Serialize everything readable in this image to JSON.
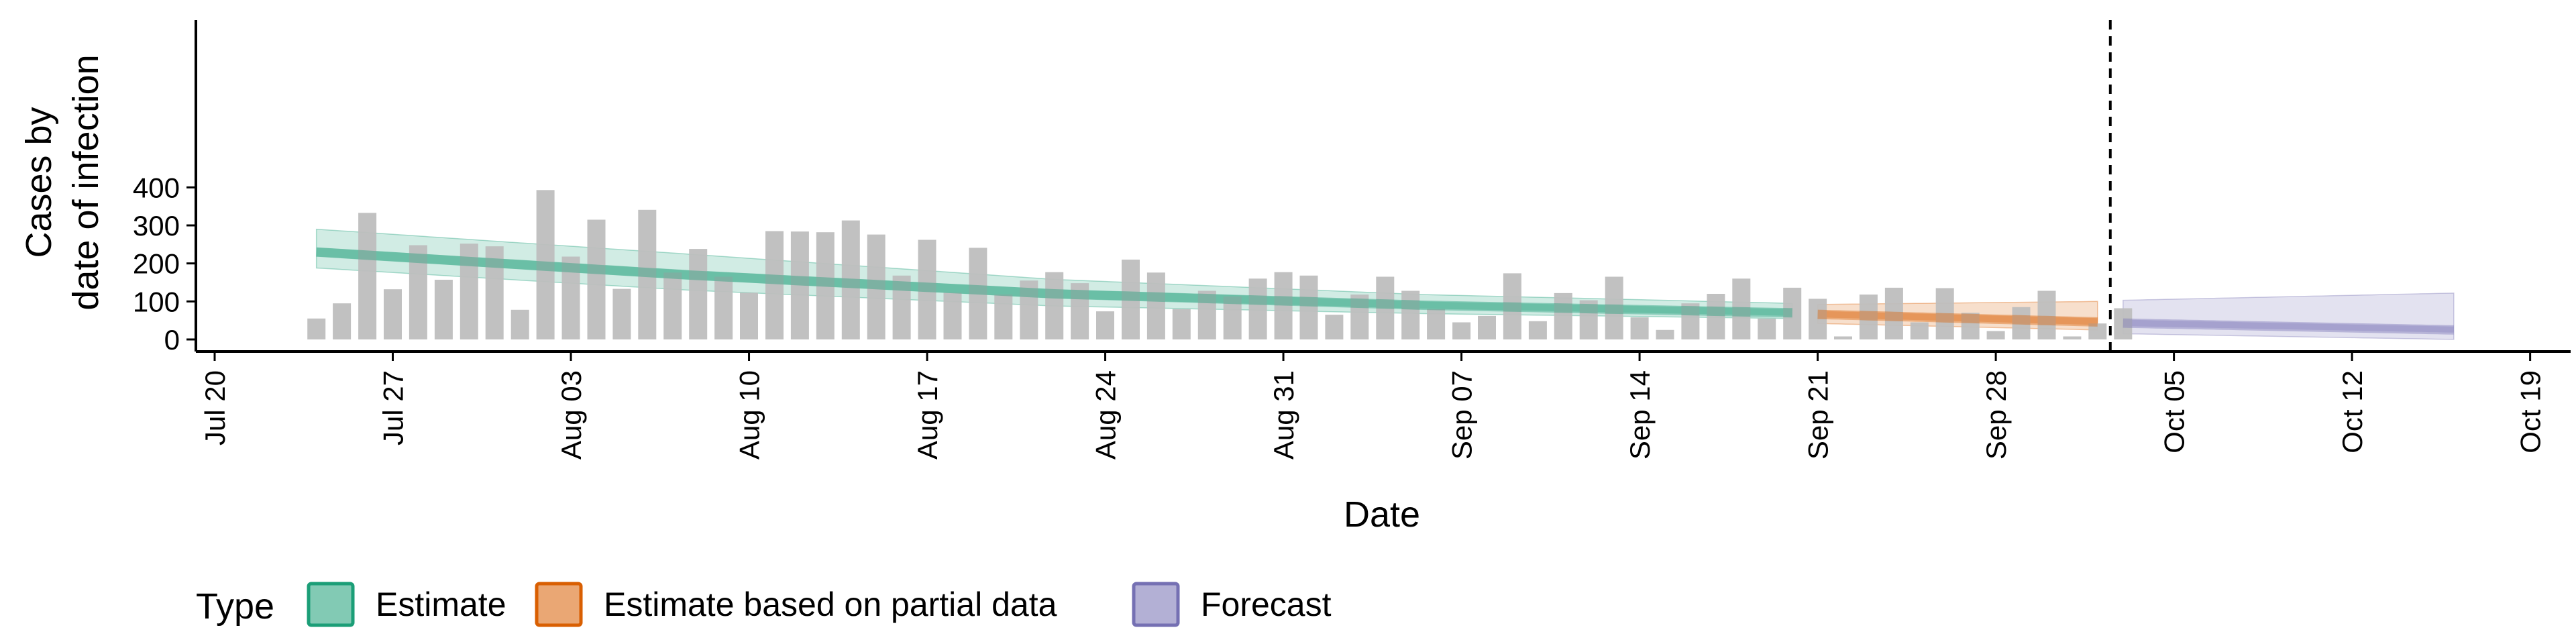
{
  "chart_data": {
    "type": "bar",
    "xlabel": "Date",
    "ylabel_lines": [
      "Cases by",
      "date of infection"
    ],
    "ylim": [
      0,
      420
    ],
    "y_ticks": [
      0,
      100,
      200,
      300,
      400
    ],
    "x_tick_labels": [
      "Jul 20",
      "Jul 27",
      "Aug 03",
      "Aug 10",
      "Aug 17",
      "Aug 24",
      "Aug 31",
      "Sep 07",
      "Sep 14",
      "Sep 21",
      "Sep 28",
      "Oct 05",
      "Oct 12",
      "Oct 19"
    ],
    "x_start_label": "Jul 20",
    "x_day_range": [
      0,
      91
    ],
    "bar_day_start": 4,
    "bars": [
      55,
      95,
      333,
      132,
      248,
      157,
      252,
      245,
      78,
      393,
      218,
      315,
      133,
      341,
      176,
      238,
      165,
      123,
      285,
      284,
      282,
      313,
      276,
      168,
      262,
      123,
      241,
      118,
      155,
      177,
      148,
      74,
      210,
      176,
      80,
      128,
      113,
      160,
      177,
      168,
      65,
      118,
      165,
      128,
      80,
      45,
      62,
      174,
      48,
      122,
      103,
      165,
      58,
      25,
      95,
      120,
      160,
      55,
      136,
      107,
      8,
      118,
      136,
      45,
      135,
      70,
      22,
      85,
      128,
      8,
      42,
      82
    ],
    "estimate_day_range": [
      4,
      62
    ],
    "estimate_median": [
      230,
      170,
      120,
      90,
      70
    ],
    "estimate_band_inner": [
      [
        218,
        242
      ],
      [
        158,
        183
      ],
      [
        108,
        132
      ],
      [
        81,
        100
      ],
      [
        62,
        80
      ]
    ],
    "estimate_band_outer": [
      [
        188,
        290
      ],
      [
        130,
        225
      ],
      [
        88,
        158
      ],
      [
        68,
        118
      ],
      [
        55,
        95
      ]
    ],
    "partial_day_range": [
      63,
      74
    ],
    "partial_median": [
      66,
      46
    ],
    "partial_band_inner": [
      [
        58,
        75
      ],
      [
        38,
        56
      ]
    ],
    "partial_band_outer": [
      [
        42,
        92
      ],
      [
        25,
        100
      ]
    ],
    "forecast_day_range": [
      75,
      88
    ],
    "forecast_median": [
      43,
      25
    ],
    "forecast_band_inner": [
      [
        35,
        52
      ],
      [
        18,
        34
      ]
    ],
    "forecast_band_outer": [
      [
        15,
        103
      ],
      [
        0,
        122
      ]
    ],
    "forecast_start_marker_day": 74.5,
    "legend": {
      "title": "Type",
      "items": [
        {
          "label": "Estimate",
          "color": "#1b9e77"
        },
        {
          "label": "Estimate based on partial data",
          "color": "#d95f02"
        },
        {
          "label": "Forecast",
          "color": "#7570b3"
        }
      ]
    },
    "bar_color": "#bebebe",
    "grid": false
  }
}
